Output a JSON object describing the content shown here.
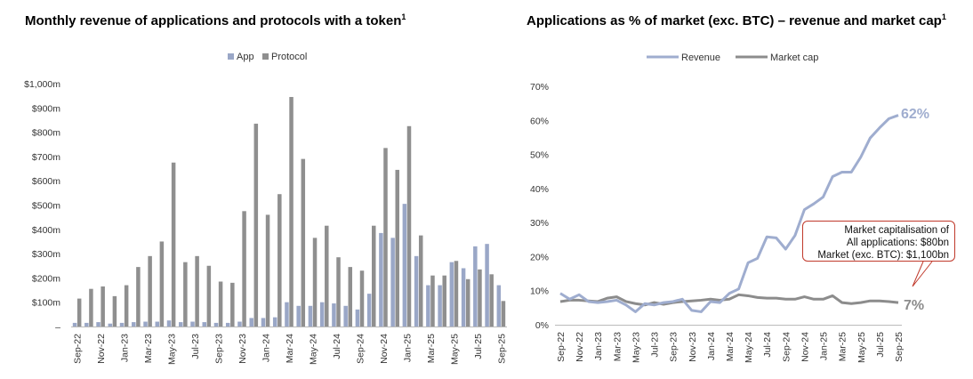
{
  "charts": {
    "left": {
      "title": "Monthly revenue of applications and protocols with a token",
      "title_sup": "1"
    },
    "right": {
      "title": "Applications as % of market (exc. BTC) – revenue and market cap",
      "title_sup": "1",
      "callout": {
        "line1": "Market capitalisation of",
        "line2": "All applications: $80bn",
        "line3": "Market (exc. BTC): $1,100bn"
      },
      "end_labels": {
        "revenue": "62%",
        "market_cap": "7%"
      }
    }
  },
  "colors": {
    "app": "#9aa7c7",
    "protocol": "#8f8f8f",
    "revenue": "#9fadcf",
    "market_cap": "#8c8c8c",
    "callout_border": "#c0392b"
  },
  "chart_data": [
    {
      "type": "bar",
      "title": "Monthly revenue of applications and protocols with a token",
      "legend": [
        "App",
        "Protocol"
      ],
      "legend_position": "top-center",
      "ylim": [
        0,
        1000
      ],
      "yticks": [
        0,
        100,
        200,
        300,
        400,
        500,
        600,
        700,
        800,
        900,
        1000
      ],
      "ytick_labels": [
        "–",
        "$100m",
        "$200m",
        "$300m",
        "$400m",
        "$500m",
        "$600m",
        "$700m",
        "$800m",
        "$900m",
        "$1,000m"
      ],
      "categories": [
        "Sep-22",
        "Oct-22",
        "Nov-22",
        "Dec-22",
        "Jan-23",
        "Feb-23",
        "Mar-23",
        "Apr-23",
        "May-23",
        "Jun-23",
        "Jul-23",
        "Aug-23",
        "Sep-23",
        "Oct-23",
        "Nov-23",
        "Dec-23",
        "Jan-24",
        "Feb-24",
        "Mar-24",
        "Apr-24",
        "May-24",
        "Jun-24",
        "Jul-24",
        "Aug-24",
        "Sep-24",
        "Oct-24",
        "Nov-24",
        "Dec-24",
        "Jan-25",
        "Feb-25",
        "Mar-25",
        "Apr-25",
        "May-25",
        "Jun-25",
        "Jul-25",
        "Aug-25",
        "Sep-25"
      ],
      "xtick_labels": [
        "Sep-22",
        "",
        "Nov-22",
        "",
        "Jan-23",
        "",
        "Mar-23",
        "",
        "May-23",
        "",
        "Jul-23",
        "",
        "Sep-23",
        "",
        "Nov-23",
        "",
        "Jan-24",
        "",
        "Mar-24",
        "",
        "May-24",
        "",
        "Jul-24",
        "",
        "Sep-24",
        "",
        "Nov-24",
        "",
        "Jan-25",
        "",
        "Mar-25",
        "",
        "May-25",
        "",
        "Jul-25",
        "",
        "Sep-25"
      ],
      "series": [
        {
          "name": "App",
          "values": [
            15,
            15,
            18,
            12,
            15,
            18,
            20,
            20,
            25,
            18,
            20,
            18,
            15,
            15,
            20,
            35,
            35,
            38,
            100,
            85,
            85,
            100,
            95,
            85,
            70,
            135,
            385,
            365,
            505,
            290,
            170,
            170,
            265,
            240,
            330,
            340,
            170
          ]
        },
        {
          "name": "Protocol",
          "values": [
            115,
            155,
            165,
            125,
            170,
            245,
            290,
            350,
            675,
            265,
            290,
            250,
            185,
            180,
            475,
            835,
            460,
            545,
            945,
            690,
            365,
            415,
            285,
            245,
            230,
            415,
            735,
            645,
            825,
            375,
            210,
            210,
            270,
            195,
            235,
            215,
            105
          ]
        }
      ]
    },
    {
      "type": "line",
      "title": "Applications as % of market (exc. BTC) – revenue and market cap",
      "legend": [
        "Revenue",
        "Market cap"
      ],
      "legend_position": "top-center",
      "ylim": [
        0,
        70
      ],
      "yticks": [
        0,
        10,
        20,
        30,
        40,
        50,
        60,
        70
      ],
      "ytick_labels": [
        "0%",
        "10%",
        "20%",
        "30%",
        "40%",
        "50%",
        "60%",
        "70%"
      ],
      "categories": [
        "Sep-22",
        "Oct-22",
        "Nov-22",
        "Dec-22",
        "Jan-23",
        "Feb-23",
        "Mar-23",
        "Apr-23",
        "May-23",
        "Jun-23",
        "Jul-23",
        "Aug-23",
        "Sep-23",
        "Oct-23",
        "Nov-23",
        "Dec-23",
        "Jan-24",
        "Feb-24",
        "Mar-24",
        "Apr-24",
        "May-24",
        "Jun-24",
        "Jul-24",
        "Aug-24",
        "Sep-24",
        "Oct-24",
        "Nov-24",
        "Dec-24",
        "Jan-25",
        "Feb-25",
        "Mar-25",
        "Apr-25",
        "May-25",
        "Jun-25",
        "Jul-25",
        "Aug-25",
        "Sep-25"
      ],
      "xtick_labels": [
        "Sep-22",
        "",
        "Nov-22",
        "",
        "Jan-23",
        "",
        "Mar-23",
        "",
        "May-23",
        "",
        "Jul-23",
        "",
        "Sep-23",
        "",
        "Nov-23",
        "",
        "Jan-24",
        "",
        "Mar-24",
        "",
        "May-24",
        "",
        "Jul-24",
        "",
        "Sep-24",
        "",
        "Nov-24",
        "",
        "Jan-25",
        "",
        "Mar-25",
        "",
        "May-25",
        "",
        "Jul-25",
        "",
        "Sep-25"
      ],
      "series": [
        {
          "name": "Revenue",
          "values": [
            9.2,
            7.5,
            8.8,
            6.8,
            6.5,
            6.8,
            7.2,
            5.8,
            3.8,
            6.2,
            5.8,
            6.5,
            6.8,
            7.5,
            4.2,
            3.8,
            6.8,
            6.5,
            9.2,
            10.5,
            18.2,
            19.5,
            25.8,
            25.5,
            22.2,
            26.2,
            33.8,
            35.5,
            37.5,
            43.5,
            44.8,
            44.8,
            49.2,
            54.8,
            57.8,
            60.5,
            61.5
          ]
        },
        {
          "name": "Market cap",
          "values": [
            6.8,
            7.2,
            7.2,
            7.0,
            6.8,
            7.8,
            8.2,
            6.8,
            6.2,
            5.8,
            6.5,
            6.0,
            6.5,
            6.8,
            7.0,
            7.2,
            7.5,
            7.2,
            7.5,
            8.8,
            8.5,
            8.0,
            7.8,
            7.8,
            7.5,
            7.5,
            8.2,
            7.5,
            7.5,
            8.5,
            6.5,
            6.2,
            6.5,
            7.0,
            7.0,
            6.8,
            6.5
          ]
        }
      ]
    }
  ]
}
